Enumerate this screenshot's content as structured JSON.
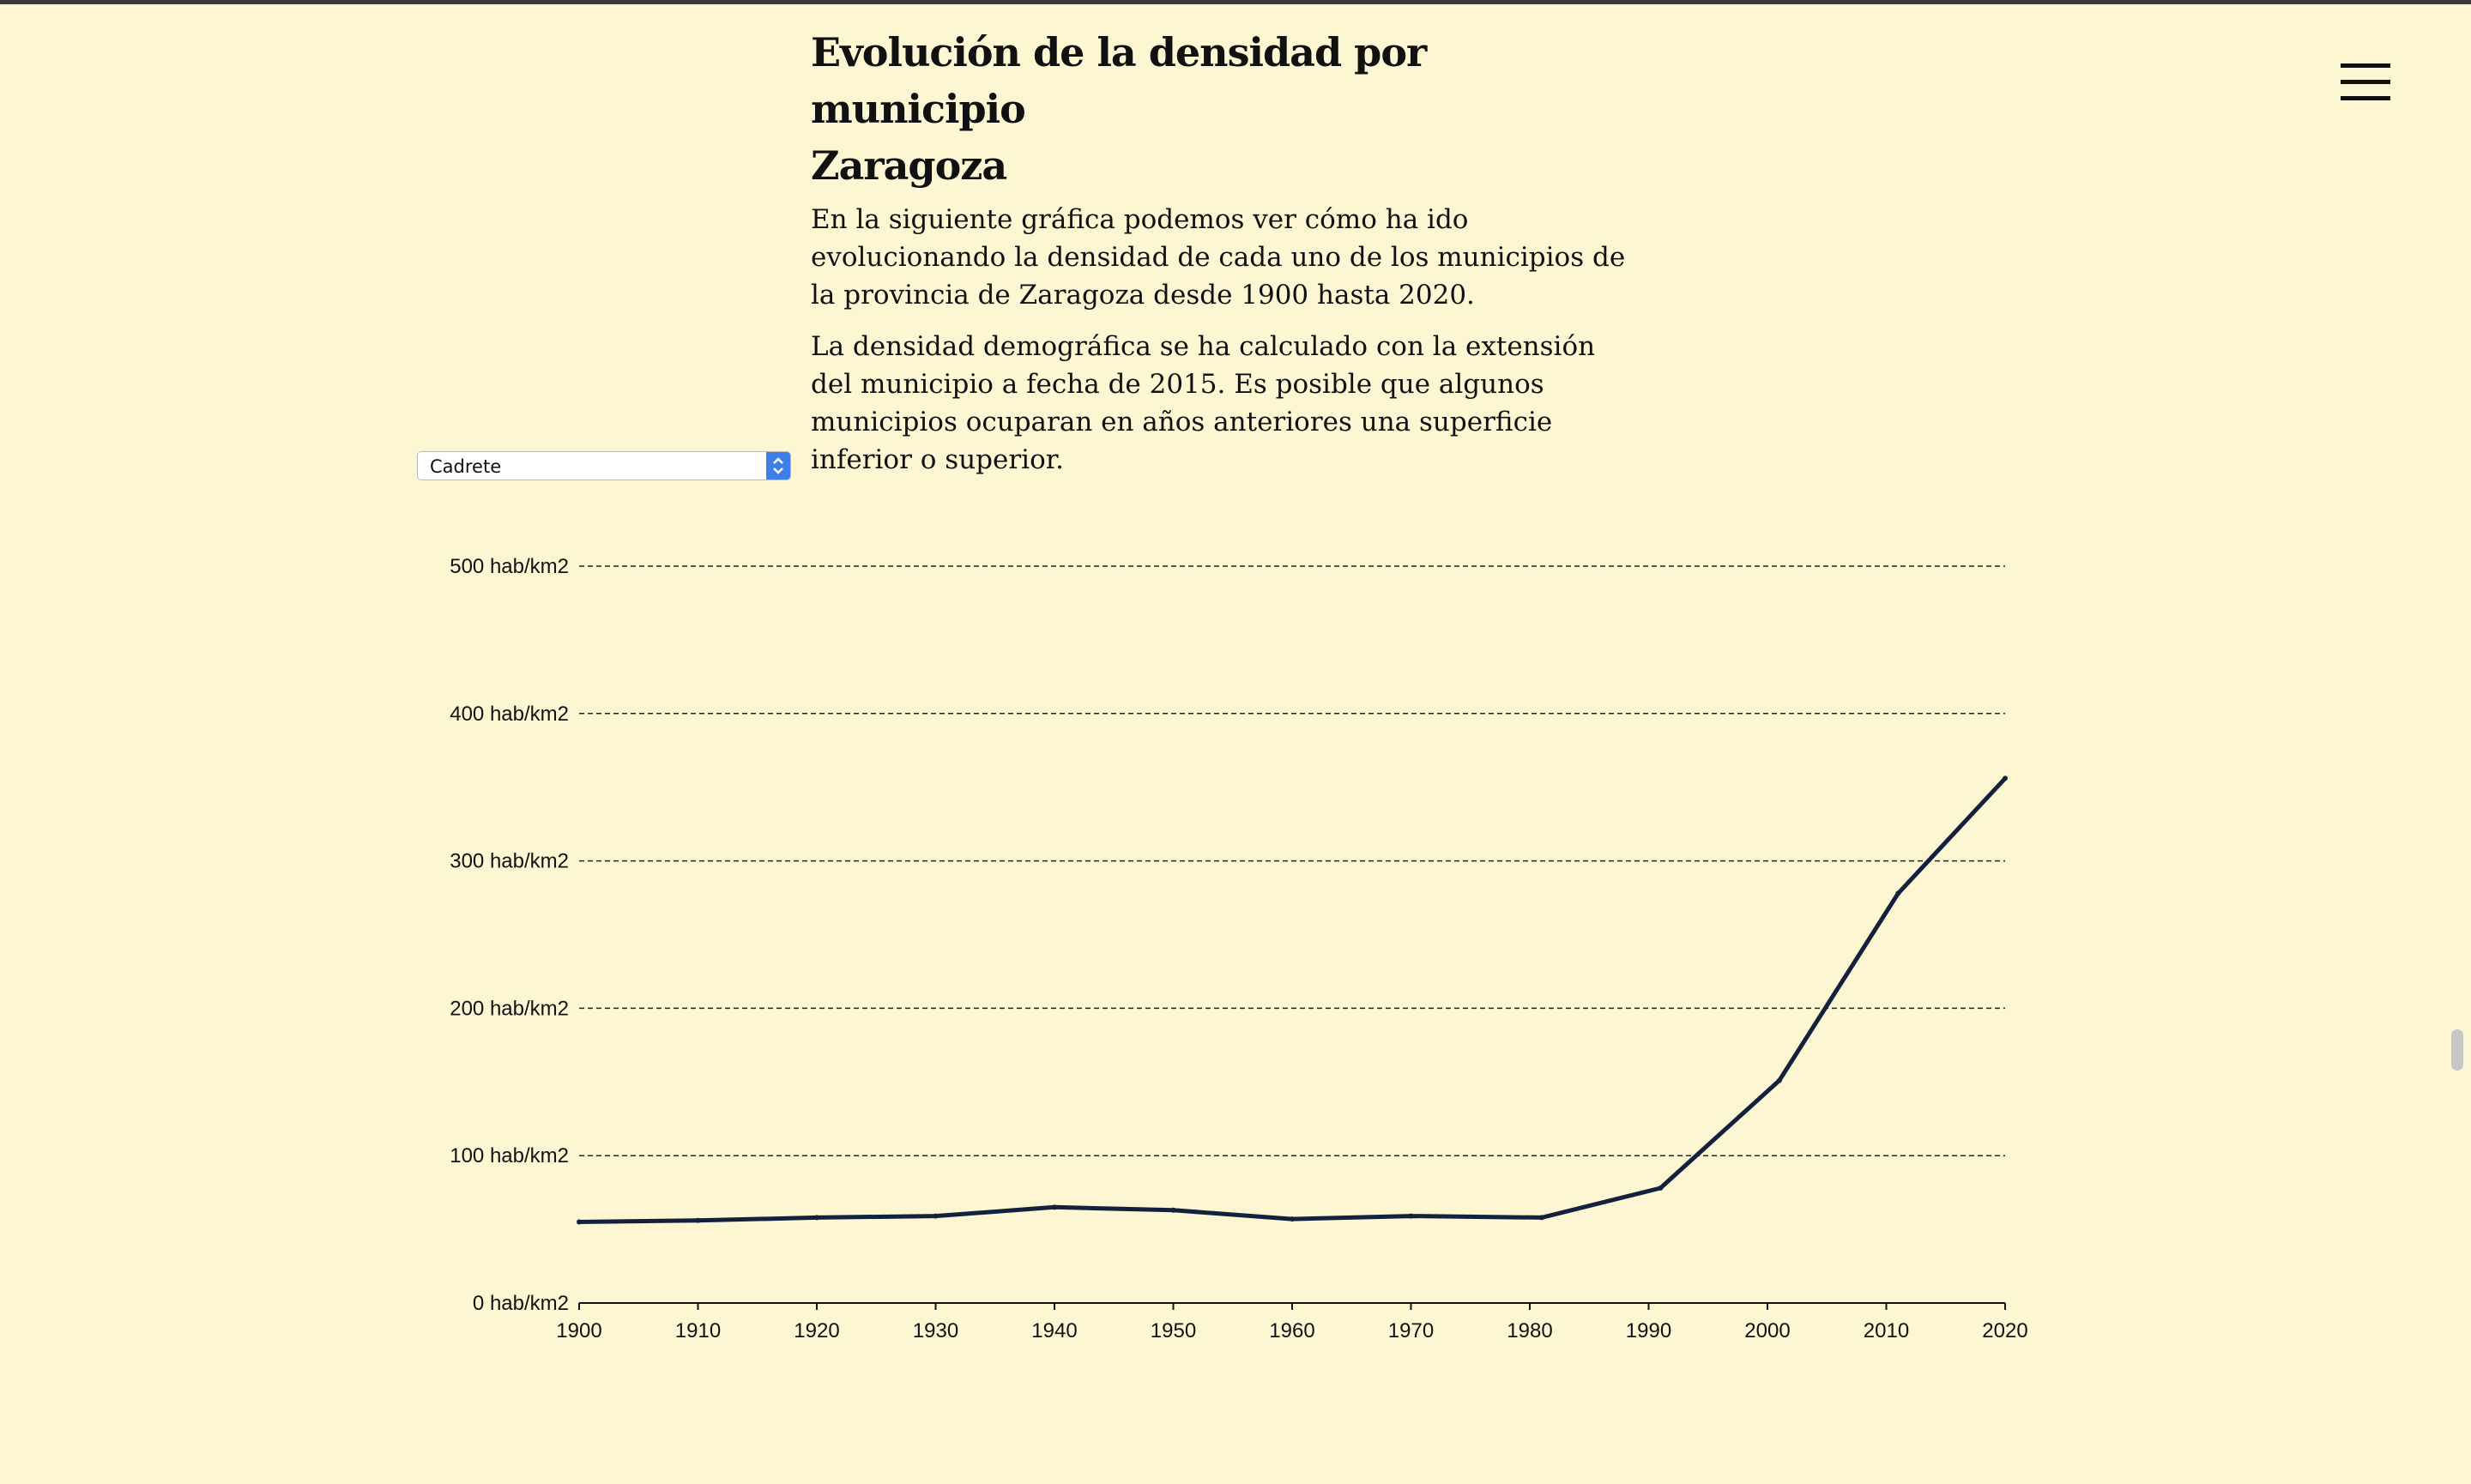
{
  "article": {
    "title_line1": "Evolución de la densidad por municipio",
    "title_line2": "Zaragoza",
    "paragraph1": "En la siguiente gráfica podemos ver cómo ha ido evolucionando la densidad de cada uno de los municipios de la provincia de Zaragoza desde 1900 hasta 2020.",
    "paragraph2": "La densidad demográfica se ha calculado con la extensión del municipio a fecha de 2015. Es posible que algunos municipios ocuparan en años anteriores una superficie inferior o superior."
  },
  "municipality_select": {
    "selected": "Cadrete"
  },
  "icons": {
    "menu": "hamburger-menu-icon",
    "select_arrows": "updown-chevron-icon"
  },
  "colors": {
    "background": "#fdf6d2",
    "line": "#14213d",
    "select_accent": "#3f7ee8"
  },
  "chart_data": {
    "type": "line",
    "x": [
      1900,
      1910,
      1920,
      1930,
      1940,
      1950,
      1960,
      1970,
      1981,
      1991,
      2001,
      2011,
      2020
    ],
    "series": [
      {
        "values": [
          55,
          56,
          58,
          59,
          65,
          63,
          57,
          59,
          58,
          78,
          151,
          278,
          356
        ]
      }
    ],
    "xticks": [
      "1900",
      "1910",
      "1920",
      "1930",
      "1940",
      "1950",
      "1960",
      "1970",
      "1980",
      "1990",
      "2000",
      "2010",
      "2020"
    ],
    "yticks": [
      "0 hab/km2",
      "100 hab/km2",
      "200 hab/km2",
      "300 hab/km2",
      "400 hab/km2",
      "500 hab/km2"
    ],
    "ylim": [
      0,
      500
    ],
    "xlim": [
      1900,
      2020
    ],
    "grid": "horizontal dashed",
    "xlabel": "",
    "ylabel": ""
  }
}
